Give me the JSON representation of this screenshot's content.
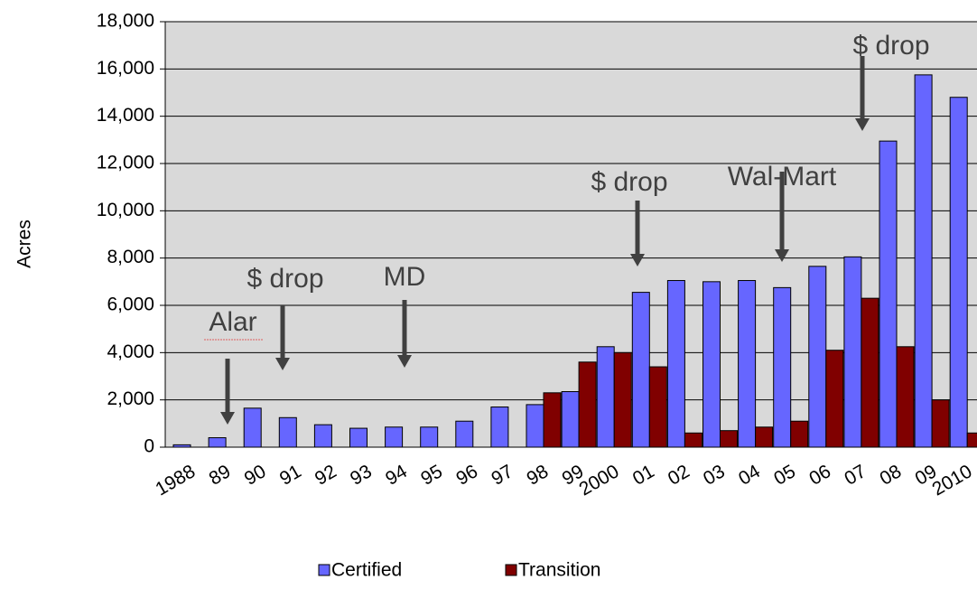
{
  "chart_data": {
    "type": "bar",
    "y_label": "Acres",
    "categories": [
      "1988",
      "89",
      "90",
      "91",
      "92",
      "93",
      "94",
      "95",
      "96",
      "97",
      "98",
      "99",
      "2000",
      "01",
      "02",
      "03",
      "04",
      "05",
      "06",
      "07",
      "08",
      "09",
      "2010"
    ],
    "series": [
      {
        "name": "Certified",
        "color": "#6666ff",
        "values": [
          100,
          400,
          1650,
          1250,
          950,
          800,
          850,
          850,
          1100,
          1700,
          1800,
          2350,
          4250,
          6550,
          7050,
          7000,
          7050,
          6750,
          7650,
          8050,
          12950,
          15750,
          14800
        ]
      },
      {
        "name": "Transition",
        "color": "#800000",
        "values": [
          0,
          0,
          0,
          0,
          0,
          0,
          0,
          0,
          0,
          0,
          2300,
          3600,
          4000,
          3400,
          600,
          700,
          850,
          1100,
          4100,
          6300,
          4250,
          2000,
          600
        ]
      }
    ],
    "ylim": [
      0,
      18000
    ],
    "yticks": [
      0,
      {
        "value": 2000,
        "label": "2,000"
      },
      {
        "value": 4000,
        "label": "4,000"
      },
      {
        "value": 6000,
        "label": "6,000"
      },
      {
        "value": 8000,
        "label": "8,000"
      },
      {
        "value": 10000,
        "label": "10,000"
      },
      {
        "value": 12000,
        "label": "12,000"
      },
      {
        "value": 14000,
        "label": "14,000"
      },
      {
        "value": 16000,
        "label": "16,000"
      },
      {
        "value": 18000,
        "label": "18,000"
      }
    ],
    "grid": true,
    "legend": "bottom",
    "annotations": [
      "Alar",
      "$ drop",
      "MD",
      "$ drop",
      "Wal-Mart",
      "$ drop"
    ]
  }
}
